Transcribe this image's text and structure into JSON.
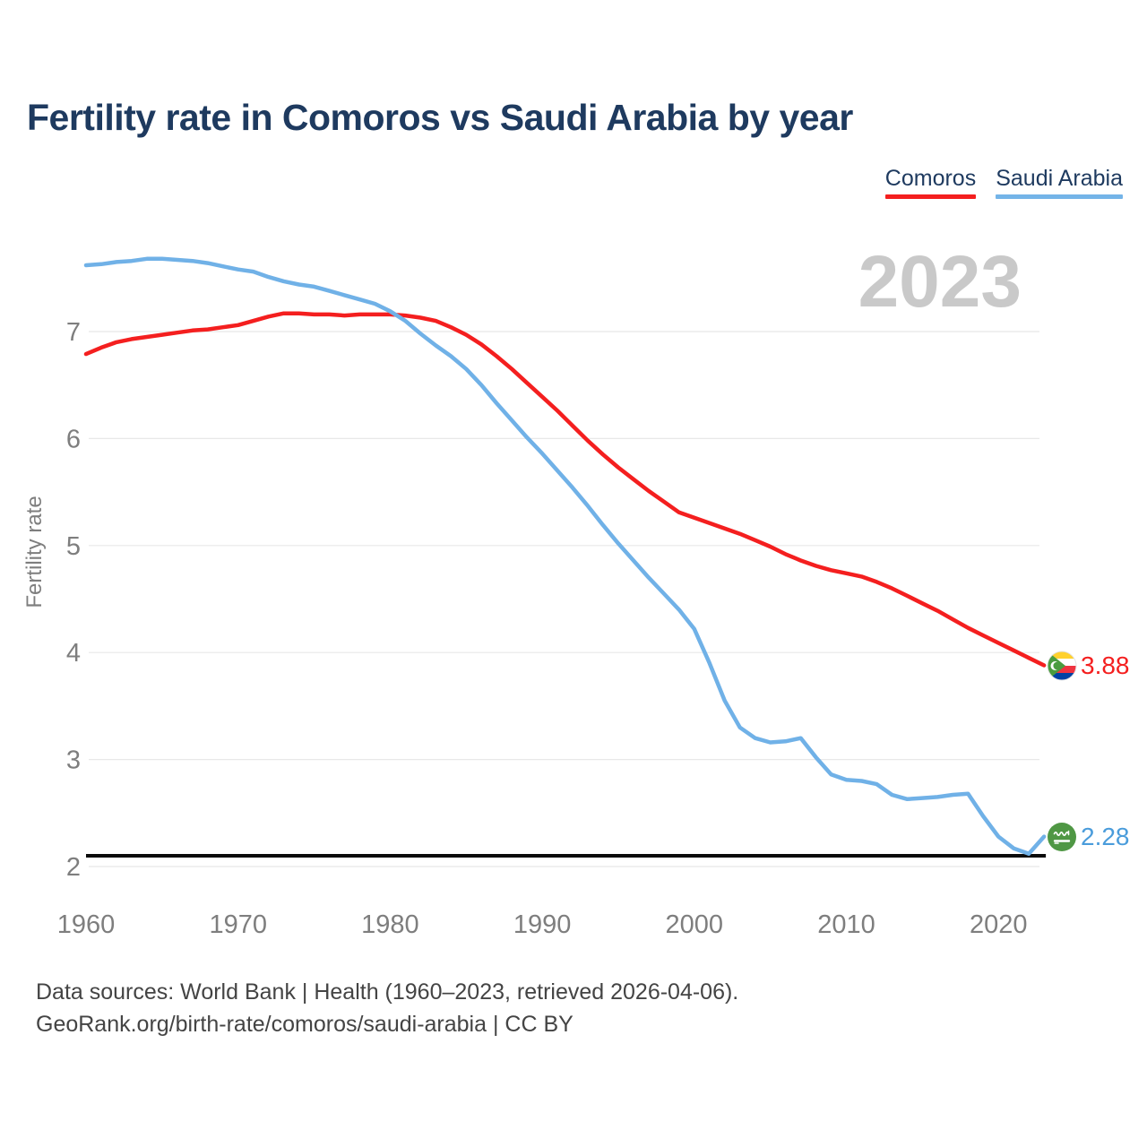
{
  "title": "Fertility rate in Comoros vs Saudi Arabia by year",
  "watermark_year": "2023",
  "legend": [
    {
      "label": "Comoros",
      "color": "#f41f1f"
    },
    {
      "label": "Saudi Arabia",
      "color": "#74b4e8"
    }
  ],
  "axis": {
    "ylabel": "Fertility rate",
    "yticks": [
      "7",
      "6",
      "5",
      "4",
      "3",
      "2"
    ],
    "xticks": [
      "1960",
      "1970",
      "1980",
      "1990",
      "2000",
      "2010",
      "2020"
    ]
  },
  "end_labels": [
    {
      "series": "Comoros",
      "value": "3.88",
      "flag": "comoros-flag",
      "color": "#f41f1f"
    },
    {
      "series": "Saudi Arabia",
      "value": "2.28",
      "flag": "saudi-arabia-flag",
      "color": "#4a9cdb"
    }
  ],
  "footer": {
    "line1": "Data sources: World Bank | Health (1960–2023, retrieved 2026-04-06).",
    "line2": "GeoRank.org/birth-rate/comoros/saudi-arabia | CC BY"
  },
  "chart_data": {
    "type": "line",
    "title": "Fertility rate in Comoros vs Saudi Arabia by year",
    "xlabel": "",
    "ylabel": "Fertility rate",
    "x": [
      1960,
      1961,
      1962,
      1963,
      1964,
      1965,
      1966,
      1967,
      1968,
      1969,
      1970,
      1971,
      1972,
      1973,
      1974,
      1975,
      1976,
      1977,
      1978,
      1979,
      1980,
      1981,
      1982,
      1983,
      1984,
      1985,
      1986,
      1987,
      1988,
      1989,
      1990,
      1991,
      1992,
      1993,
      1994,
      1995,
      1996,
      1997,
      1998,
      1999,
      2000,
      2001,
      2002,
      2003,
      2004,
      2005,
      2006,
      2007,
      2008,
      2009,
      2010,
      2011,
      2012,
      2013,
      2014,
      2015,
      2016,
      2017,
      2018,
      2019,
      2020,
      2021,
      2022,
      2023
    ],
    "series": [
      {
        "name": "Comoros",
        "color": "#f41f1f",
        "final_value_label": "3.88",
        "values": [
          6.79,
          6.85,
          6.9,
          6.93,
          6.95,
          6.97,
          6.99,
          7.01,
          7.02,
          7.04,
          7.06,
          7.1,
          7.14,
          7.17,
          7.17,
          7.16,
          7.16,
          7.15,
          7.16,
          7.16,
          7.16,
          7.15,
          7.13,
          7.1,
          7.04,
          6.97,
          6.88,
          6.77,
          6.65,
          6.52,
          6.39,
          6.26,
          6.12,
          5.98,
          5.85,
          5.73,
          5.62,
          5.51,
          5.41,
          5.31,
          5.26,
          5.21,
          5.16,
          5.11,
          5.05,
          4.99,
          4.92,
          4.86,
          4.81,
          4.77,
          4.74,
          4.71,
          4.66,
          4.6,
          4.53,
          4.46,
          4.39,
          4.31,
          4.23,
          4.16,
          4.09,
          4.02,
          3.95,
          3.88
        ]
      },
      {
        "name": "Saudi Arabia",
        "color": "#70b1e7",
        "final_value_label": "2.28",
        "values": [
          7.62,
          7.63,
          7.65,
          7.66,
          7.68,
          7.68,
          7.67,
          7.66,
          7.64,
          7.61,
          7.58,
          7.56,
          7.51,
          7.47,
          7.44,
          7.42,
          7.38,
          7.34,
          7.3,
          7.26,
          7.19,
          7.1,
          6.98,
          6.87,
          6.77,
          6.65,
          6.5,
          6.33,
          6.17,
          6.01,
          5.86,
          5.7,
          5.54,
          5.37,
          5.19,
          5.02,
          4.86,
          4.7,
          4.55,
          4.4,
          4.22,
          3.9,
          3.55,
          3.3,
          3.2,
          3.16,
          3.17,
          3.2,
          3.02,
          2.86,
          2.81,
          2.8,
          2.77,
          2.67,
          2.63,
          2.64,
          2.65,
          2.67,
          2.68,
          2.47,
          2.28,
          2.17,
          2.12,
          2.28
        ]
      }
    ],
    "yticks": [
      2,
      3,
      4,
      5,
      6,
      7
    ],
    "xticks": [
      1960,
      1970,
      1980,
      1990,
      2000,
      2010,
      2020
    ],
    "ylim": [
      1.9,
      7.9
    ],
    "xlim": [
      1960,
      2023
    ],
    "grid": "horizontal",
    "legend_position": "top-right",
    "reference_line": {
      "value": 2.1,
      "color": "#0a0a0a",
      "meaning": "replacement-level fertility"
    }
  }
}
